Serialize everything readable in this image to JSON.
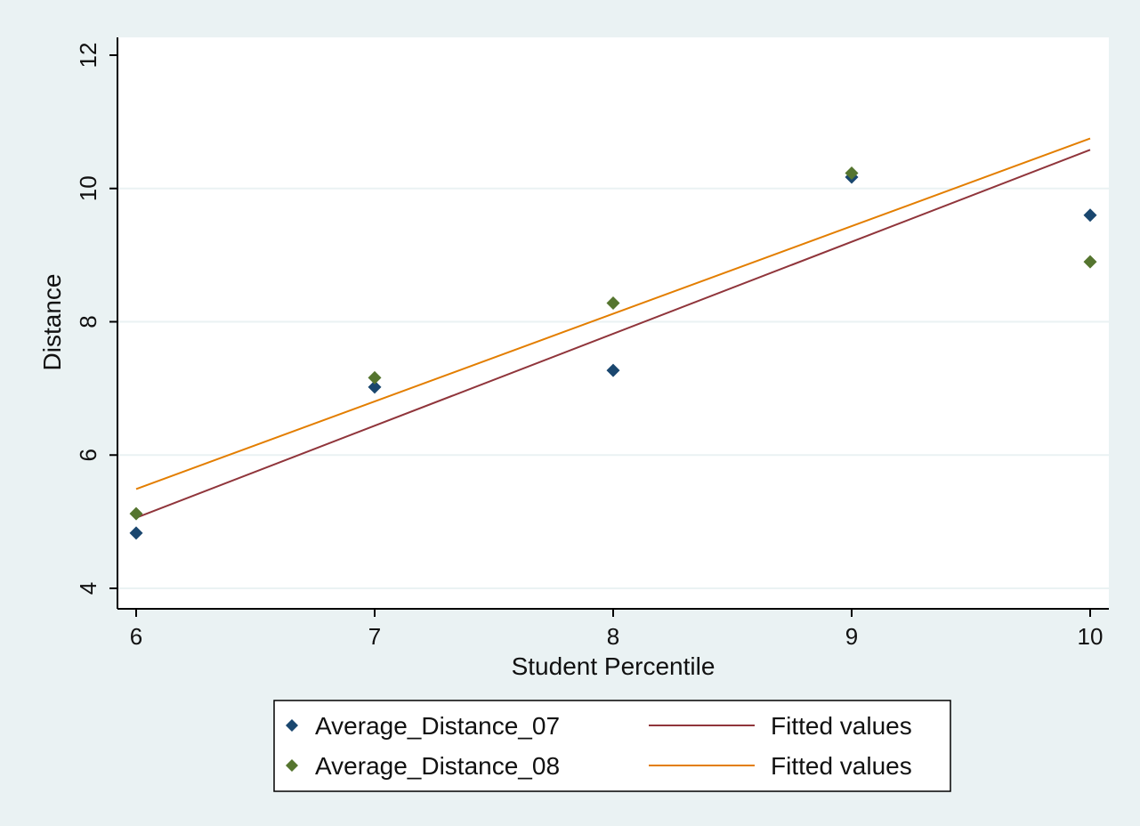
{
  "chart_data": {
    "type": "scatter",
    "xlabel": "Student Percentile",
    "ylabel": "Distance",
    "xlim": [
      6,
      10
    ],
    "ylim": [
      4,
      12
    ],
    "x_ticks": [
      6,
      7,
      8,
      9,
      10
    ],
    "y_ticks": [
      4,
      6,
      8,
      10,
      12
    ],
    "grid": true,
    "legend_position": "bottom",
    "series": [
      {
        "name": "Average_Distance_07",
        "kind": "scatter",
        "marker": "diamond",
        "color": "#1a476f",
        "points": [
          [
            6,
            4.83
          ],
          [
            7,
            7.02
          ],
          [
            8,
            7.27
          ],
          [
            9,
            10.17
          ],
          [
            10,
            9.6
          ]
        ]
      },
      {
        "name": "Average_Distance_08",
        "kind": "scatter",
        "marker": "diamond",
        "color": "#55752f",
        "points": [
          [
            6,
            5.12
          ],
          [
            7,
            7.16
          ],
          [
            8,
            8.28
          ],
          [
            9,
            10.23
          ],
          [
            10,
            8.9
          ]
        ]
      },
      {
        "name": "Fitted values",
        "kind": "line",
        "color": "#90353b",
        "points": [
          [
            6,
            5.06
          ],
          [
            10,
            10.58
          ]
        ]
      },
      {
        "name": "Fitted values",
        "kind": "line",
        "color": "#e37e00",
        "points": [
          [
            6,
            5.49
          ],
          [
            10,
            10.75
          ]
        ]
      }
    ]
  },
  "colors": {
    "background": "#eaf2f3",
    "plot_area": "#ffffff",
    "gridline": "#eaf2f3",
    "axis": "#000000"
  }
}
